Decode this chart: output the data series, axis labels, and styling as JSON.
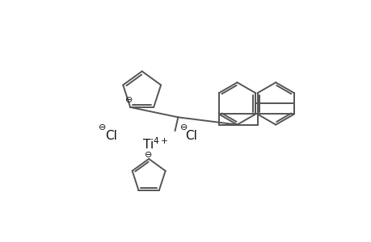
{
  "bg_color": "#ffffff",
  "line_color": "#555555",
  "text_color": "#111111",
  "figsize": [
    4.6,
    3.0
  ],
  "dpi": 100,
  "pc_lw": 1.4,
  "cp_lw": 1.4
}
